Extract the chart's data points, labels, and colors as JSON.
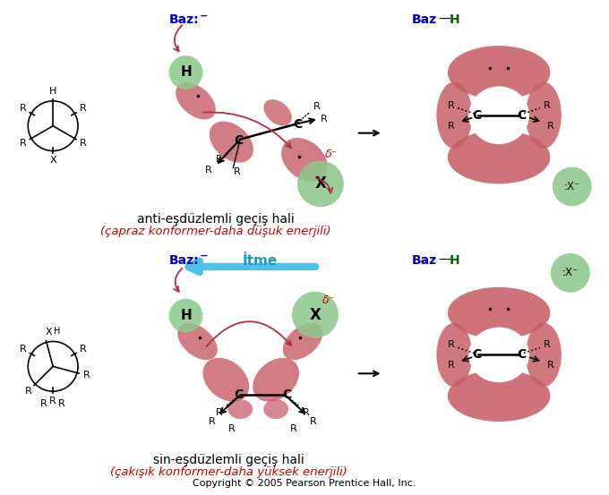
{
  "bg_color": "#ffffff",
  "copyright": "Copyright © 2005 Pearson Prentice Hall, Inc.",
  "green_atom": "#8dc88d",
  "green_atom_dark": "#5a9e5a",
  "red_orbital": "#c8606a",
  "arrow_red": "#b03040",
  "arrow_blue": "#50c0e8",
  "text_red": "#cc0000",
  "text_blue": "#0000cc",
  "text_green": "#006600",
  "top": {
    "baz_label": "Baz:",
    "anti_label": "anti-eşdüzlemli geçiş hali",
    "anti_sub": "(çapraz konformer-daha düşuk enerjili)"
  },
  "bottom": {
    "baz_label": "Baz:",
    "itme_label": "İtme",
    "sin_label": "sin-eşdüzlemli geçiş hali",
    "sin_sub": "(çakışık konformer-daha yüksek enerjili)"
  }
}
